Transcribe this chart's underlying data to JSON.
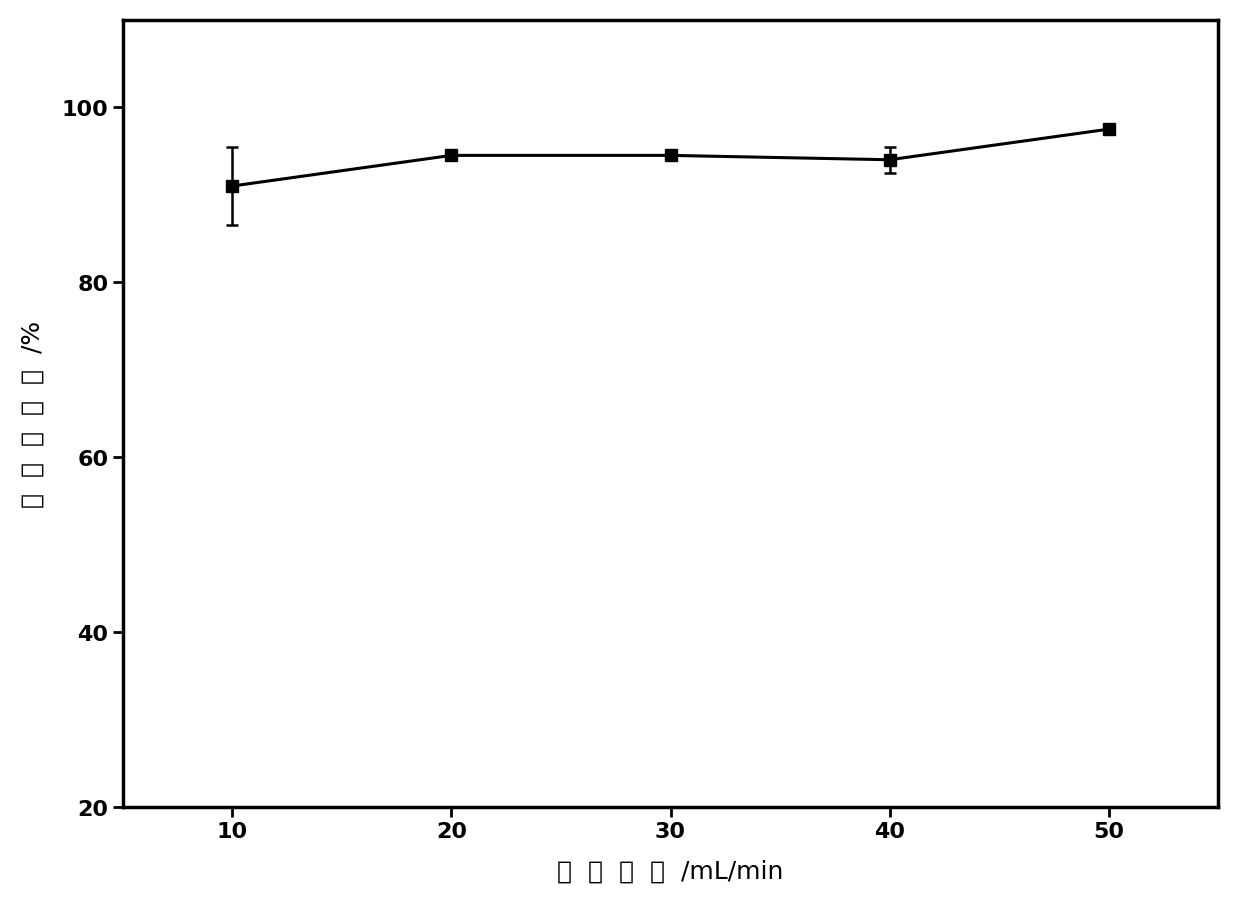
{
  "x": [
    10,
    20,
    30,
    40,
    50
  ],
  "y": [
    91.0,
    94.5,
    94.5,
    94.0,
    97.5
  ],
  "yerr": [
    4.5,
    0.5,
    0.4,
    1.5,
    0.5
  ],
  "xlabel_chinese": "气  体  流  量",
  "xlabel_unit": "/mL/min",
  "ylabel_chars": [
    "细",
    "胞",
    "存",
    "活",
    "率",
    "/％"
  ],
  "xlim": [
    5,
    55
  ],
  "ylim": [
    20,
    110
  ],
  "yticks": [
    20,
    40,
    60,
    80,
    100
  ],
  "xticks": [
    10,
    20,
    30,
    40,
    50
  ],
  "line_color": "#000000",
  "marker": "s",
  "marker_color": "#000000",
  "marker_size": 9,
  "line_width": 2.2,
  "capsize": 4,
  "elinewidth": 1.8,
  "tick_fontsize": 16,
  "label_fontsize": 18,
  "background_color": "#ffffff",
  "figure_background": "#ffffff"
}
